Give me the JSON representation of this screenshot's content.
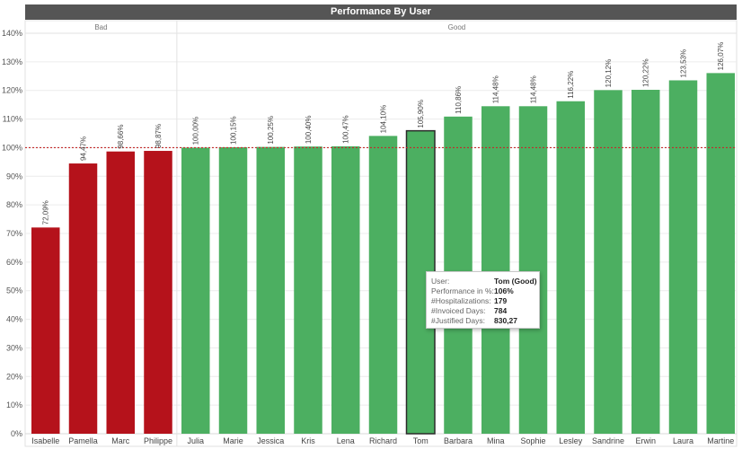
{
  "chart_data": {
    "type": "bar",
    "title": "Performance By User",
    "ylim": [
      0,
      140
    ],
    "y_ticks": [
      "0%",
      "10%",
      "20%",
      "30%",
      "40%",
      "50%",
      "60%",
      "70%",
      "80%",
      "90%",
      "100%",
      "110%",
      "120%",
      "130%",
      "140%"
    ],
    "y_tick_values": [
      0,
      10,
      20,
      30,
      40,
      50,
      60,
      70,
      80,
      90,
      100,
      110,
      120,
      130,
      140
    ],
    "reference_line": 100,
    "groups": [
      {
        "name": "Bad",
        "color": "#b5121b"
      },
      {
        "name": "Good",
        "color": "#4caf61"
      }
    ],
    "categories": [
      "Isabelle",
      "Pamella",
      "Marc",
      "Philippe",
      "Julia",
      "Marie",
      "Jessica",
      "Kris",
      "Lena",
      "Richard",
      "Tom",
      "Barbara",
      "Mina",
      "Sophie",
      "Lesley",
      "Sandrine",
      "Erwin",
      "Laura",
      "Martine"
    ],
    "group_of_category": [
      "Bad",
      "Bad",
      "Bad",
      "Bad",
      "Good",
      "Good",
      "Good",
      "Good",
      "Good",
      "Good",
      "Good",
      "Good",
      "Good",
      "Good",
      "Good",
      "Good",
      "Good",
      "Good",
      "Good"
    ],
    "values": [
      72.09,
      94.47,
      98.66,
      98.87,
      100.0,
      100.15,
      100.25,
      100.4,
      100.47,
      104.1,
      105.9,
      110.86,
      114.48,
      114.48,
      116.22,
      120.12,
      120.22,
      123.53,
      126.07
    ],
    "data_labels": [
      "72,09%",
      "94,47%",
      "98,66%",
      "98,87%",
      "100,00%",
      "100,15%",
      "100,25%",
      "100,40%",
      "100,47%",
      "104,10%",
      "105,90%",
      "110,86%",
      "114,48%",
      "114,48%",
      "116,22%",
      "120,12%",
      "120,22%",
      "123,53%",
      "126,07%"
    ],
    "highlighted": "Tom",
    "grid": true
  },
  "tooltip": {
    "rows": [
      {
        "key": "User:",
        "value": "Tom (Good)"
      },
      {
        "key": "Performance in %:",
        "value": "106%"
      },
      {
        "key": "#Hospitalizations:",
        "value": "179"
      },
      {
        "key": "#Invoiced Days:",
        "value": "784"
      },
      {
        "key": "#Justified Days:",
        "value": "830,27"
      }
    ]
  }
}
